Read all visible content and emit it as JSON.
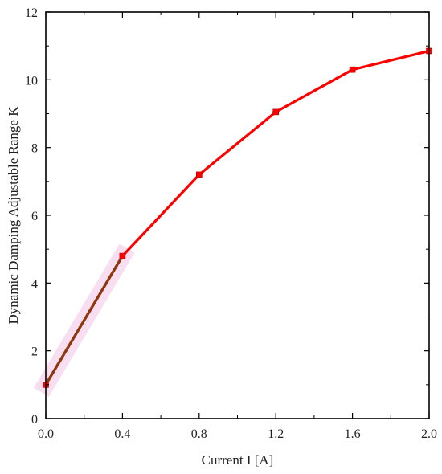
{
  "chart_data": {
    "type": "line",
    "title": "",
    "xlabel": "Current I [A]",
    "ylabel": "Dynamic Damping Adjustable Range K",
    "xlim": [
      0.0,
      2.0
    ],
    "ylim": [
      0,
      12
    ],
    "x_ticks": [
      "0.0",
      "0.4",
      "0.8",
      "1.2",
      "1.6",
      "2.0"
    ],
    "y_ticks": [
      "0",
      "2",
      "4",
      "6",
      "8",
      "10",
      "12"
    ],
    "grid": false,
    "series": [
      {
        "x": [
          0.0,
          0.4,
          0.8,
          1.2,
          1.6,
          2.0
        ],
        "y": [
          1.0,
          4.8,
          7.2,
          9.05,
          10.3,
          10.85
        ],
        "color": "#ff0000",
        "marker": "square"
      }
    ],
    "highlight_segment": {
      "x": [
        0.0,
        0.4
      ],
      "y": [
        1.0,
        4.8
      ],
      "color": "#8b3a0f",
      "glow_color": "#f7d9ef"
    }
  }
}
